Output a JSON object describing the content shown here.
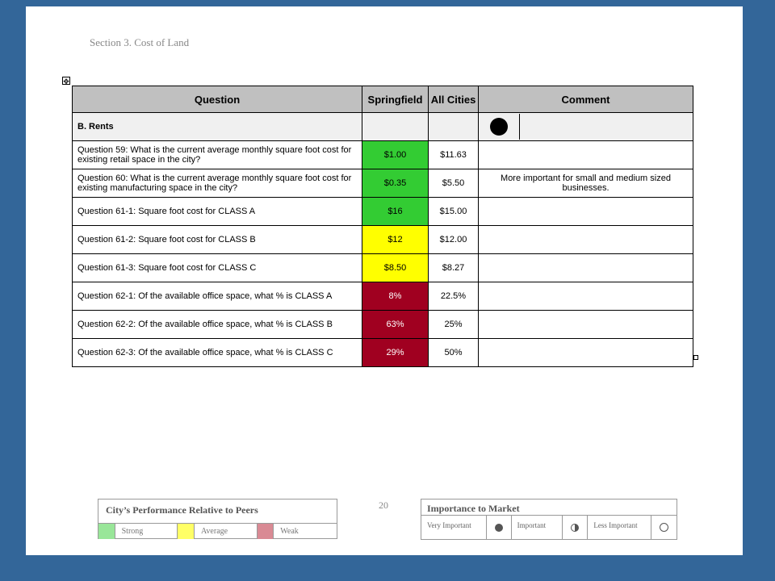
{
  "section_title": "Section 3. Cost of Land",
  "page_number": "20",
  "table": {
    "headers": {
      "question": "Question",
      "springfield": "Springfield",
      "all_cities": "All Cities",
      "comment": "Comment"
    },
    "section_label": "B. Rents",
    "rows": [
      {
        "question": "Question 59: What is the current average monthly square foot cost for existing retail space in the city?",
        "springfield": "$1.00",
        "all_cities": "$11.63",
        "comment": "",
        "rating": "strong"
      },
      {
        "question": "Question 60: What is the current average monthly square foot cost for existing manufacturing space in the city?",
        "springfield": "$0.35",
        "all_cities": "$5.50",
        "comment": "More important for small and medium sized businesses.",
        "rating": "strong"
      },
      {
        "question": "Question 61-1: Square foot cost for CLASS A",
        "springfield": "$16",
        "all_cities": "$15.00",
        "comment": "",
        "rating": "strong"
      },
      {
        "question": "Question 61-2: Square foot cost for CLASS B",
        "springfield": "$12",
        "all_cities": "$12.00",
        "comment": "",
        "rating": "average"
      },
      {
        "question": "Question 61-3: Square foot cost for CLASS C",
        "springfield": "$8.50",
        "all_cities": "$8.27",
        "comment": "",
        "rating": "average"
      },
      {
        "question": "Question 62-1: Of the available office space, what % is CLASS A",
        "springfield": "8%",
        "all_cities": "22.5%",
        "comment": "",
        "rating": "weak"
      },
      {
        "question": "Question 62-2: Of the available office space, what % is CLASS B",
        "springfield": "63%",
        "all_cities": "25%",
        "comment": "",
        "rating": "weak"
      },
      {
        "question": "Question 62-3: Of the available office space, what % is CLASS C",
        "springfield": "29%",
        "all_cities": "50%",
        "comment": "",
        "rating": "weak"
      }
    ]
  },
  "legend_performance": {
    "title": "City’s Performance Relative to Peers",
    "strong": "Strong",
    "average": "Average",
    "weak": "Weak"
  },
  "legend_importance": {
    "title": "Importance to Market",
    "very_important": "Very Important",
    "important": "Important",
    "less_important": "Less Important"
  },
  "colors": {
    "background": "#336699",
    "strong": "#33cc33",
    "average": "#ffff00",
    "weak": "#a00020"
  }
}
